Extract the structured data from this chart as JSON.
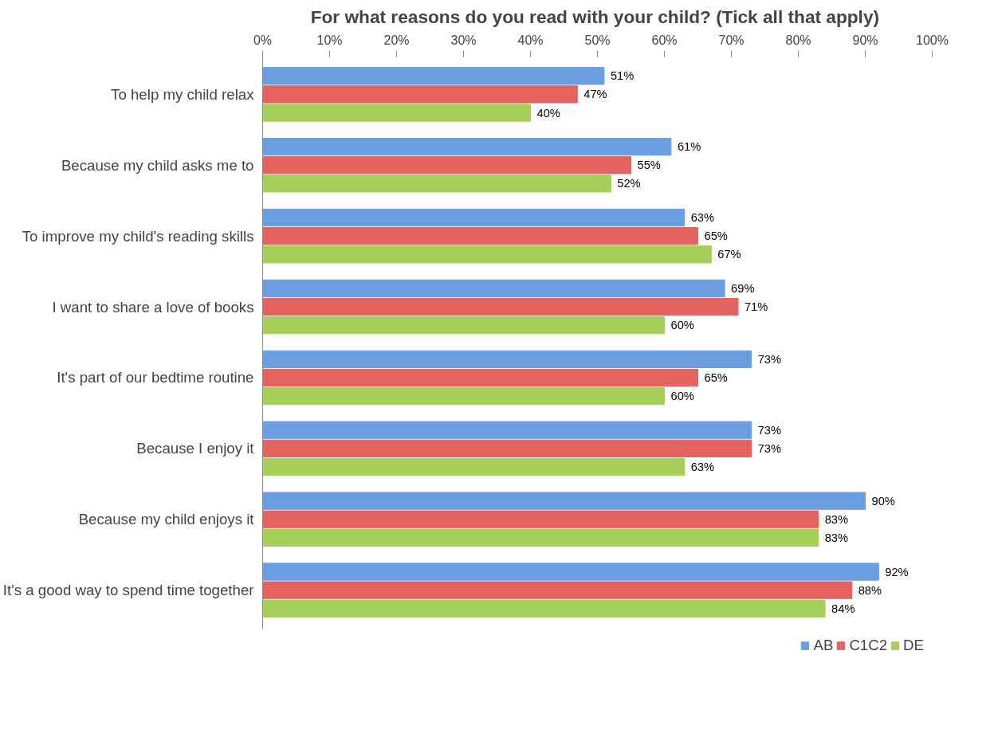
{
  "chart_data": {
    "type": "bar",
    "orientation": "horizontal",
    "title": "For what reasons do you read with your child?  (Tick all that apply)",
    "categories": [
      "To help my child relax",
      "Because my child asks me to",
      "To improve my child's reading skills",
      "I want to share a love of books",
      "It's part of our bedtime routine",
      "Because I enjoy it",
      "Because my child enjoys it",
      "It's a good way to spend time together"
    ],
    "series": [
      {
        "name": "AB",
        "color": "#6a9ee0",
        "values": [
          51,
          61,
          63,
          69,
          73,
          73,
          90,
          92
        ],
        "value_labels": [
          "51%",
          "61%",
          "63%",
          "69%",
          "73%",
          "73%",
          "90%",
          "92%"
        ]
      },
      {
        "name": "C1C2",
        "color": "#e4625f",
        "values": [
          47,
          55,
          65,
          71,
          65,
          73,
          83,
          88
        ],
        "value_labels": [
          "47%",
          "55%",
          "65%",
          "71%",
          "65%",
          "73%",
          "83%",
          "88%"
        ]
      },
      {
        "name": "DE",
        "color": "#a6cf5a",
        "values": [
          40,
          52,
          67,
          60,
          60,
          63,
          83,
          84
        ],
        "value_labels": [
          "40%",
          "52%",
          "67%",
          "60%",
          "60%",
          "63%",
          "83%",
          "84%"
        ]
      }
    ],
    "xlim": [
      0,
      100
    ],
    "xticks": [
      {
        "value": 0,
        "label": "0%"
      },
      {
        "value": 10,
        "label": "10%"
      },
      {
        "value": 20,
        "label": "20%"
      },
      {
        "value": 30,
        "label": "30%"
      },
      {
        "value": 40,
        "label": "40%"
      },
      {
        "value": 50,
        "label": "50%"
      },
      {
        "value": 60,
        "label": "60%"
      },
      {
        "value": 70,
        "label": "70%"
      },
      {
        "value": 80,
        "label": "80%"
      },
      {
        "value": 90,
        "label": "90%"
      },
      {
        "value": 100,
        "label": "100%"
      }
    ],
    "grid": false,
    "legend": "bottom"
  }
}
